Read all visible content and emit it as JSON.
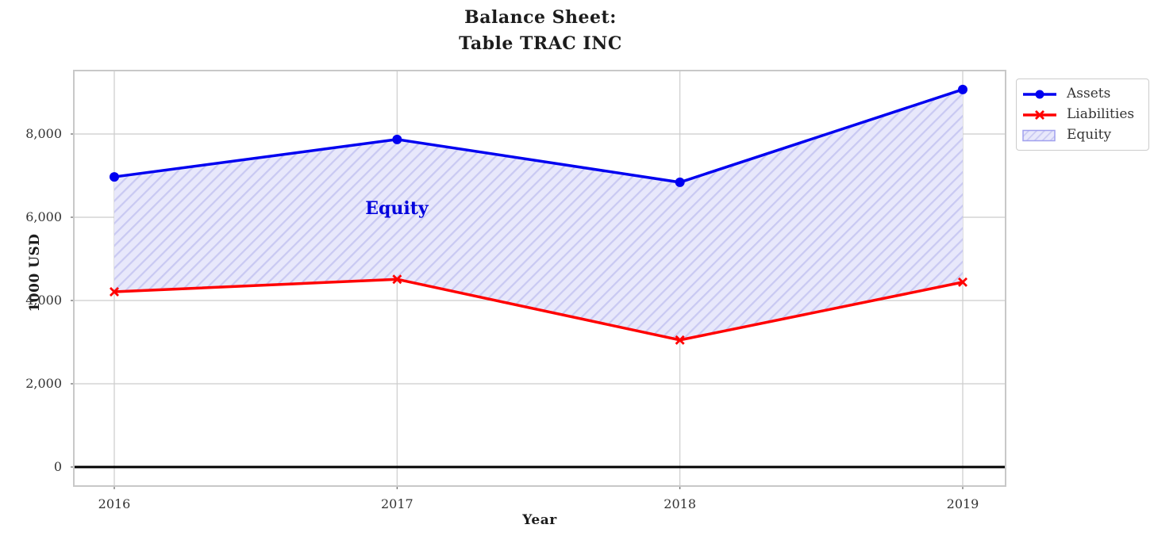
{
  "chart_data": {
    "type": "line",
    "title": "Balance Sheet:\nTable TRAC INC",
    "xlabel": "Year",
    "ylabel": "1000 USD",
    "categories": [
      "2016",
      "2017",
      "2018",
      "2019"
    ],
    "series": [
      {
        "name": "Assets",
        "values": [
          6970,
          7870,
          6840,
          9070
        ],
        "color": "#0000f0",
        "marker": "circle",
        "line_width": 3.5
      },
      {
        "name": "Liabilities",
        "values": [
          4210,
          4510,
          3050,
          4440
        ],
        "color": "#ff0000",
        "marker": "x",
        "line_width": 3.5
      }
    ],
    "fill_between": {
      "label": "Equity",
      "between": [
        "Assets",
        "Liabilities"
      ],
      "values": [
        2760,
        3360,
        3790,
        4630
      ],
      "fill_color": "#e8e8fb",
      "hatch": "//",
      "hatch_color": "#c9c9f2",
      "edge_color": "#a0a0ee"
    },
    "annotation": {
      "text": "Equity",
      "x": "2017",
      "y": 6150,
      "color": "#0000dd"
    },
    "y_ticks": [
      0,
      2000,
      4000,
      6000,
      8000
    ],
    "y_tick_labels": [
      "0",
      "2,000",
      "4,000",
      "6,000",
      "8,000"
    ],
    "ylim": [
      -460,
      9520
    ],
    "grid": true,
    "grid_color": "#cccccc",
    "border_color": "#c8c8c8",
    "zero_line_color": "#000000",
    "tick_color": "#333333",
    "legend_position": "upper-right-outside",
    "legend": [
      "Assets",
      "Liabilities",
      "Equity"
    ]
  }
}
